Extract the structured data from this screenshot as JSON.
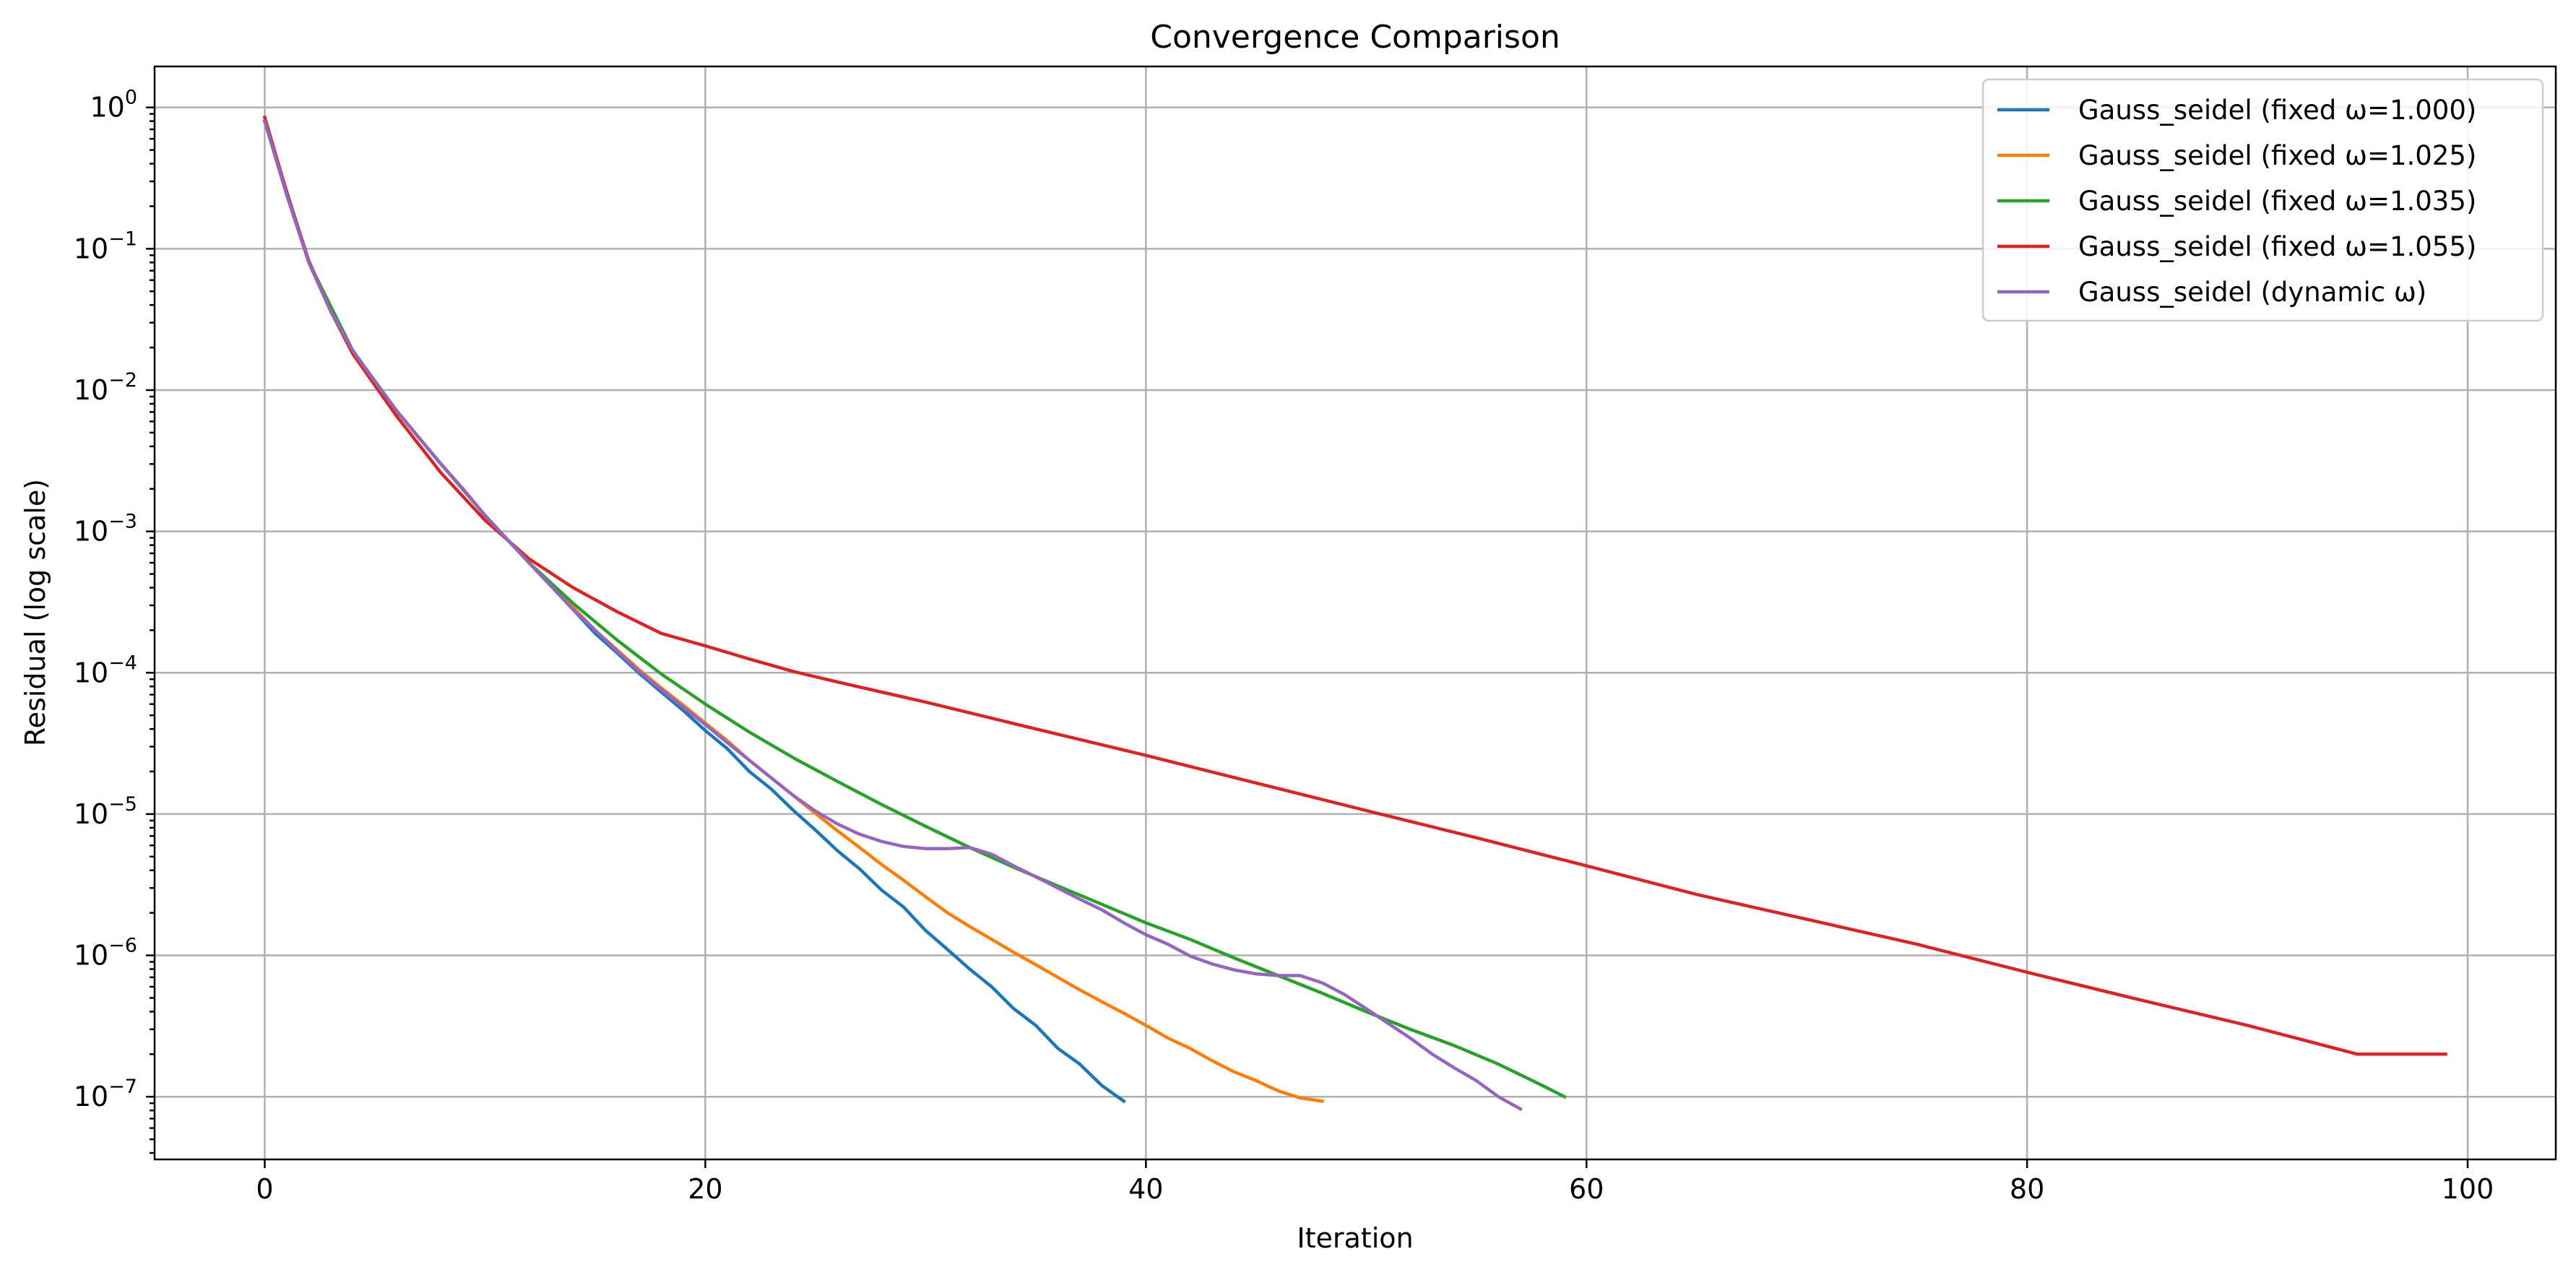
{
  "chart_data": {
    "type": "line",
    "title": "Convergence Comparison",
    "xlabel": "Iteration",
    "ylabel": "Residual (log scale)",
    "yscale": "log",
    "xlim": [
      -5,
      104
    ],
    "ylim": [
      3.6e-08,
      1.95
    ],
    "xticks": [
      0,
      20,
      40,
      60,
      80,
      100
    ],
    "xtick_labels": [
      "0",
      "20",
      "40",
      "60",
      "80",
      "100"
    ],
    "yticks": [
      1,
      0.1,
      0.01,
      0.001,
      0.0001,
      1e-05,
      1e-06,
      1e-07
    ],
    "ytick_labels": [
      {
        "base": "10",
        "exp": "0"
      },
      {
        "base": "10",
        "exp": "−1"
      },
      {
        "base": "10",
        "exp": "−2"
      },
      {
        "base": "10",
        "exp": "−3"
      },
      {
        "base": "10",
        "exp": "−4"
      },
      {
        "base": "10",
        "exp": "−5"
      },
      {
        "base": "10",
        "exp": "−6"
      },
      {
        "base": "10",
        "exp": "−7"
      }
    ],
    "grid": true,
    "legend_position": "top-right",
    "series": [
      {
        "name": "Gauss_seidel (fixed ω=1.000)",
        "color": "#1f77b4",
        "x": [
          0,
          1,
          2,
          3,
          4,
          5,
          6,
          7,
          8,
          9,
          10,
          11,
          12,
          13,
          14,
          15,
          16,
          17,
          18,
          19,
          20,
          21,
          22,
          23,
          24,
          25,
          26,
          27,
          28,
          29,
          30,
          31,
          32,
          33,
          34,
          35,
          36,
          37,
          38,
          39
        ],
        "y": [
          0.8,
          0.24,
          0.08,
          0.036,
          0.019,
          0.0115,
          0.0071,
          0.0046,
          0.003,
          0.002,
          0.0013,
          0.00088,
          0.0006,
          0.00041,
          0.00028,
          0.00019,
          0.000138,
          9.9e-05,
          7.3e-05,
          5.4e-05,
          3.9e-05,
          2.9e-05,
          2e-05,
          1.5e-05,
          1.06e-05,
          7.7e-06,
          5.5e-06,
          4.1e-06,
          2.9e-06,
          2.2e-06,
          1.5e-06,
          1.1e-06,
          8e-07,
          6e-07,
          4.2e-07,
          3.2e-07,
          2.2e-07,
          1.7e-07,
          1.2e-07,
          9.3e-08
        ]
      },
      {
        "name": "Gauss_seidel (fixed ω=1.025)",
        "color": "#ff7f0e",
        "x": [
          0,
          1,
          2,
          3,
          4,
          5,
          6,
          7,
          8,
          9,
          10,
          11,
          12,
          13,
          14,
          15,
          16,
          17,
          18,
          19,
          20,
          21,
          22,
          23,
          24,
          25,
          26,
          27,
          28,
          29,
          30,
          31,
          32,
          33,
          34,
          35,
          36,
          37,
          38,
          39,
          40,
          41,
          42,
          43,
          44,
          45,
          46,
          47,
          48
        ],
        "y": [
          0.8,
          0.24,
          0.08,
          0.036,
          0.019,
          0.0115,
          0.0071,
          0.0046,
          0.003,
          0.002,
          0.0013,
          0.00088,
          0.0006,
          0.00041,
          0.00029,
          0.0002,
          0.000145,
          0.000105,
          7.8e-05,
          5.9e-05,
          4.4e-05,
          3.3e-05,
          2.4e-05,
          1.8e-05,
          1.35e-05,
          1.01e-05,
          7.6e-06,
          5.8e-06,
          4.4e-06,
          3.4e-06,
          2.6e-06,
          2e-06,
          1.6e-06,
          1.3e-06,
          1.05e-06,
          8.6e-07,
          7e-07,
          5.7e-07,
          4.7e-07,
          3.9e-07,
          3.2e-07,
          2.6e-07,
          2.2e-07,
          1.8e-07,
          1.5e-07,
          1.3e-07,
          1.1e-07,
          9.8e-08,
          9.3e-08
        ]
      },
      {
        "name": "Gauss_seidel (fixed ω=1.035)",
        "color": "#2ca02c",
        "x": [
          0,
          2,
          4,
          6,
          8,
          10,
          12,
          14,
          16,
          18,
          20,
          22,
          24,
          26,
          28,
          30,
          32,
          34,
          36,
          38,
          40,
          42,
          44,
          46,
          48,
          50,
          52,
          54,
          56,
          58,
          59
        ],
        "y": [
          0.8,
          0.08,
          0.019,
          0.0071,
          0.003,
          0.0013,
          0.0006,
          0.00031,
          0.00017,
          9.8e-05,
          6e-05,
          3.8e-05,
          2.5e-05,
          1.7e-05,
          1.17e-05,
          8.2e-06,
          5.8e-06,
          4.2e-06,
          3.1e-06,
          2.3e-06,
          1.7e-06,
          1.3e-06,
          9.6e-07,
          7.2e-07,
          5.4e-07,
          4e-07,
          3e-07,
          2.3e-07,
          1.7e-07,
          1.2e-07,
          1e-07
        ]
      },
      {
        "name": "Gauss_seidel (fixed ω=1.055)",
        "color": "#d62728",
        "x": [
          0,
          1,
          2,
          3,
          4,
          6,
          8,
          10,
          12,
          14,
          16,
          18,
          20,
          22,
          24,
          26,
          28,
          30,
          35,
          40,
          45,
          50,
          55,
          60,
          65,
          70,
          75,
          80,
          85,
          90,
          95,
          99
        ],
        "y": [
          0.85,
          0.25,
          0.082,
          0.036,
          0.018,
          0.0065,
          0.0026,
          0.0012,
          0.00064,
          0.0004,
          0.00027,
          0.00019,
          0.000155,
          0.000125,
          0.000102,
          8.6e-05,
          7.3e-05,
          6.2e-05,
          4e-05,
          2.6e-05,
          1.66e-05,
          1.06e-05,
          6.8e-06,
          4.3e-06,
          2.7e-06,
          1.8e-06,
          1.2e-06,
          7.6e-07,
          4.9e-07,
          3.2e-07,
          2e-07,
          2e-07
        ]
      },
      {
        "name": "Gauss_seidel (dynamic ω)",
        "color": "#9467bd",
        "x": [
          0,
          1,
          2,
          3,
          4,
          5,
          6,
          7,
          8,
          9,
          10,
          11,
          12,
          13,
          14,
          15,
          16,
          17,
          18,
          19,
          20,
          21,
          22,
          23,
          24,
          25,
          26,
          27,
          28,
          29,
          30,
          31,
          32,
          33,
          34,
          35,
          36,
          37,
          38,
          39,
          40,
          41,
          42,
          43,
          44,
          45,
          46,
          47,
          48,
          49,
          50,
          51,
          52,
          53,
          54,
          55,
          56,
          57
        ],
        "y": [
          0.8,
          0.24,
          0.08,
          0.036,
          0.019,
          0.0115,
          0.0071,
          0.0046,
          0.003,
          0.002,
          0.0013,
          0.00088,
          0.0006,
          0.00041,
          0.00028,
          0.0002,
          0.000142,
          0.000102,
          7.6e-05,
          5.7e-05,
          4.3e-05,
          3.2e-05,
          2.4e-05,
          1.8e-05,
          1.35e-05,
          1.05e-05,
          8.5e-06,
          7.2e-06,
          6.4e-06,
          5.9e-06,
          5.7e-06,
          5.7e-06,
          5.8e-06,
          5.2e-06,
          4.3e-06,
          3.6e-06,
          3e-06,
          2.5e-06,
          2.1e-06,
          1.7e-06,
          1.4e-06,
          1.2e-06,
          9.9e-07,
          8.7e-07,
          7.9e-07,
          7.4e-07,
          7.2e-07,
          7.2e-07,
          6.4e-07,
          5.3e-07,
          4.2e-07,
          3.3e-07,
          2.6e-07,
          2e-07,
          1.6e-07,
          1.3e-07,
          1e-07,
          8.2e-08
        ]
      }
    ]
  }
}
